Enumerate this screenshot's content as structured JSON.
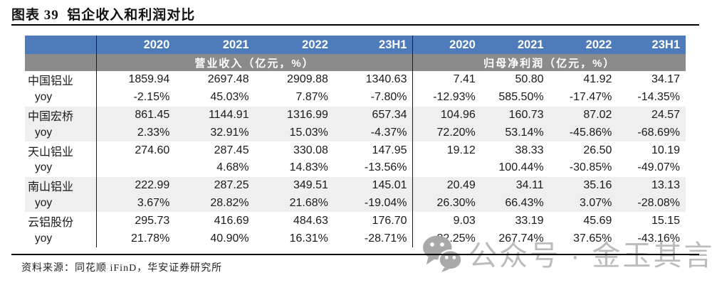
{
  "title": "图表 39  铝企收入和利润对比",
  "table": {
    "year_headers": [
      "2020",
      "2021",
      "2022",
      "23H1",
      "2020",
      "2021",
      "2022",
      "23H1"
    ],
    "section_headers": [
      "营业收入（亿元，%）",
      "归母净利润（亿元，%）"
    ],
    "rows": [
      {
        "label": "中国铝业",
        "type": "company",
        "revenue": [
          "1859.94",
          "2697.48",
          "2909.88",
          "1340.63"
        ],
        "profit": [
          "7.41",
          "50.80",
          "41.92",
          "34.17"
        ]
      },
      {
        "label": "yoy",
        "type": "yoy",
        "revenue": [
          "-2.15%",
          "45.03%",
          "7.87%",
          "-7.80%"
        ],
        "profit": [
          "-12.93%",
          "585.50%",
          "-17.47%",
          "-14.35%"
        ]
      },
      {
        "label": "中国宏桥",
        "type": "company",
        "revenue": [
          "861.45",
          "1144.91",
          "1316.99",
          "657.34"
        ],
        "profit": [
          "104.96",
          "160.73",
          "87.02",
          "24.57"
        ]
      },
      {
        "label": "yoy",
        "type": "yoy",
        "revenue": [
          "2.33%",
          "32.91%",
          "15.03%",
          "-4.37%"
        ],
        "profit": [
          "72.20%",
          "53.14%",
          "-45.86%",
          "-68.69%"
        ]
      },
      {
        "label": "天山铝业",
        "type": "company",
        "revenue": [
          "274.60",
          "287.45",
          "330.08",
          "147.95"
        ],
        "profit": [
          "19.12",
          "38.33",
          "26.50",
          "10.19"
        ]
      },
      {
        "label": "yoy",
        "type": "yoy",
        "revenue": [
          "",
          "4.68%",
          "14.83%",
          "-13.56%"
        ],
        "profit": [
          "",
          "100.44%",
          "-30.85%",
          "-49.07%"
        ]
      },
      {
        "label": "南山铝业",
        "type": "company",
        "revenue": [
          "222.99",
          "287.25",
          "349.51",
          "145.01"
        ],
        "profit": [
          "20.49",
          "34.11",
          "35.16",
          "13.13"
        ]
      },
      {
        "label": "yoy",
        "type": "yoy",
        "revenue": [
          "3.67%",
          "28.82%",
          "21.68%",
          "-19.04%"
        ],
        "profit": [
          "26.30%",
          "66.43%",
          "3.07%",
          "-28.08%"
        ]
      },
      {
        "label": "云铝股份",
        "type": "company",
        "revenue": [
          "295.73",
          "416.69",
          "484.63",
          "176.70"
        ],
        "profit": [
          "9.03",
          "33.19",
          "45.69",
          "15.15"
        ]
      },
      {
        "label": "yoy",
        "type": "yoy",
        "revenue": [
          "21.78%",
          "40.90%",
          "16.31%",
          "-28.71%"
        ],
        "profit": [
          "82.25%",
          "267.74%",
          "37.65%",
          "-43.16%"
        ]
      }
    ]
  },
  "footer": {
    "source": "资料来源：同花顺 iFinD，华安证券研究所"
  },
  "watermark": {
    "icon": "wechat-icon",
    "text": "公众号 · 金玉其言"
  },
  "colors": {
    "header_blue": "#4e7cba",
    "subheader_gray": "#8b8b8b",
    "zebra_row": "#efefef",
    "watermark_gray": "#bcbcbc",
    "rule_black": "#000000"
  }
}
